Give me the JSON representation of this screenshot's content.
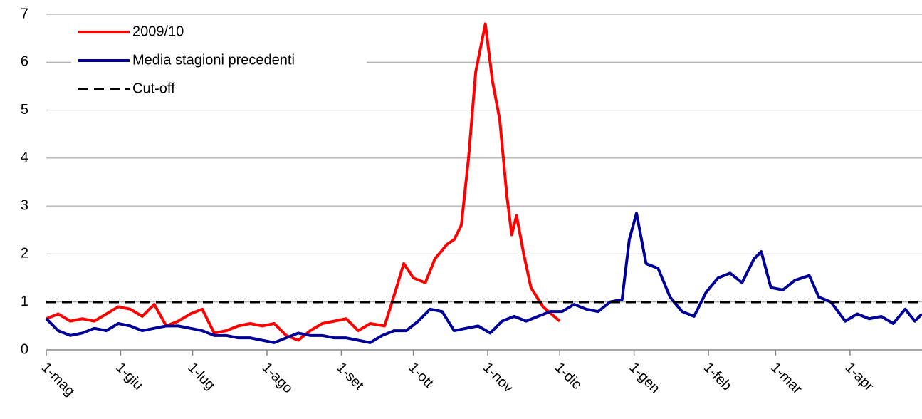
{
  "chart_data": {
    "type": "line",
    "xlim": [
      0,
      365
    ],
    "xticks": [
      {
        "value": 0,
        "label": "1-mag"
      },
      {
        "value": 31,
        "label": "1-giu"
      },
      {
        "value": 61,
        "label": "1-lug"
      },
      {
        "value": 92,
        "label": "1-ago"
      },
      {
        "value": 123,
        "label": "1-set"
      },
      {
        "value": 153,
        "label": "1-ott"
      },
      {
        "value": 184,
        "label": "1-nov"
      },
      {
        "value": 214,
        "label": "1-dic"
      },
      {
        "value": 245,
        "label": "1-gen"
      },
      {
        "value": 276,
        "label": "1-feb"
      },
      {
        "value": 304,
        "label": "1-mar"
      },
      {
        "value": 335,
        "label": "1-apr"
      }
    ],
    "ylim": [
      0,
      7
    ],
    "yticks": [
      0,
      1,
      2,
      3,
      4,
      5,
      6,
      7
    ],
    "grid": true,
    "legend": "top-left",
    "series": [
      {
        "name": "2009/10",
        "color": "#ff0000",
        "x": [
          0,
          5,
          10,
          15,
          20,
          25,
          30,
          35,
          40,
          45,
          50,
          55,
          60,
          65,
          70,
          75,
          80,
          85,
          90,
          95,
          100,
          105,
          110,
          115,
          120,
          125,
          130,
          135,
          141,
          146,
          149,
          153,
          158,
          162,
          167,
          170,
          173,
          176,
          179,
          183,
          186,
          189,
          192,
          194,
          196,
          199,
          202,
          207,
          214
        ],
        "values": [
          0.65,
          0.75,
          0.6,
          0.65,
          0.6,
          0.75,
          0.9,
          0.85,
          0.7,
          0.95,
          0.5,
          0.6,
          0.75,
          0.85,
          0.35,
          0.4,
          0.5,
          0.55,
          0.5,
          0.55,
          0.3,
          0.2,
          0.4,
          0.55,
          0.6,
          0.65,
          0.4,
          0.55,
          0.5,
          1.3,
          1.8,
          1.5,
          1.4,
          1.9,
          2.2,
          2.3,
          2.6,
          4,
          5.8,
          6.8,
          5.6,
          4.8,
          3.2,
          2.4,
          2.8,
          2,
          1.3,
          0.9,
          0.6
        ]
      },
      {
        "name": "Media stagioni precedenti",
        "color": "#000099",
        "x": [
          0,
          5,
          10,
          15,
          20,
          25,
          30,
          35,
          40,
          45,
          50,
          55,
          60,
          65,
          70,
          75,
          80,
          85,
          90,
          95,
          100,
          105,
          110,
          115,
          120,
          125,
          130,
          135,
          140,
          145,
          150,
          155,
          160,
          165,
          170,
          175,
          180,
          185,
          190,
          195,
          200,
          205,
          210,
          215,
          220,
          225,
          230,
          235,
          240,
          243,
          246,
          250,
          255,
          260,
          265,
          270,
          275,
          280,
          285,
          290,
          295,
          298,
          302,
          307,
          312,
          318,
          322,
          327,
          333,
          338,
          343,
          348,
          353,
          358,
          362,
          365
        ],
        "values": [
          0.65,
          0.4,
          0.3,
          0.35,
          0.45,
          0.4,
          0.55,
          0.5,
          0.4,
          0.45,
          0.5,
          0.5,
          0.45,
          0.4,
          0.3,
          0.3,
          0.25,
          0.25,
          0.2,
          0.15,
          0.25,
          0.35,
          0.3,
          0.3,
          0.25,
          0.25,
          0.2,
          0.15,
          0.3,
          0.4,
          0.4,
          0.6,
          0.85,
          0.8,
          0.4,
          0.45,
          0.5,
          0.35,
          0.6,
          0.7,
          0.6,
          0.7,
          0.8,
          0.8,
          0.95,
          0.85,
          0.8,
          1,
          1.05,
          2.3,
          2.85,
          1.8,
          1.7,
          1.1,
          0.8,
          0.7,
          1.2,
          1.5,
          1.6,
          1.4,
          1.9,
          2.05,
          1.3,
          1.25,
          1.45,
          1.55,
          1.1,
          1,
          0.6,
          0.75,
          0.65,
          0.7,
          0.55,
          0.85,
          0.6,
          0.75
        ]
      },
      {
        "name": "Cut-off",
        "color": "#000000",
        "dash": true,
        "x": [
          0,
          365
        ],
        "values": [
          1,
          1
        ]
      }
    ]
  }
}
